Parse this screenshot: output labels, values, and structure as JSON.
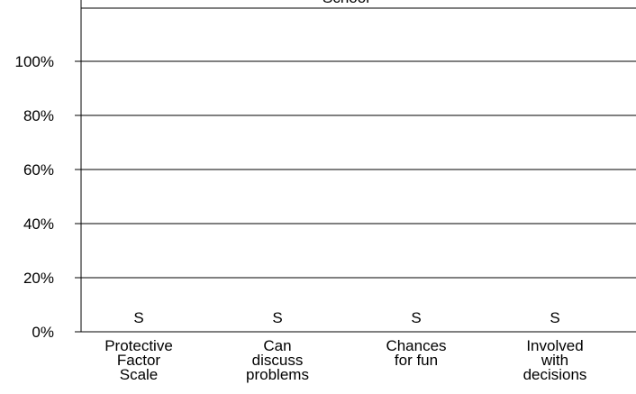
{
  "chart_data": {
    "type": "bar",
    "title": "School",
    "categories": [
      [
        "Protective",
        "Factor",
        "Scale"
      ],
      [
        "Can",
        "discuss",
        "problems"
      ],
      [
        "Chances",
        "for fun"
      ],
      [
        "Involved",
        "with",
        "decisions"
      ]
    ],
    "values": [
      0,
      0,
      0,
      0
    ],
    "data_labels": [
      "S",
      "S",
      "S",
      "S"
    ],
    "y_ticks": [
      "0%",
      "20%",
      "40%",
      "60%",
      "80%",
      "100%"
    ],
    "ylim": [
      0,
      100
    ],
    "grid": true,
    "legend": "none"
  }
}
